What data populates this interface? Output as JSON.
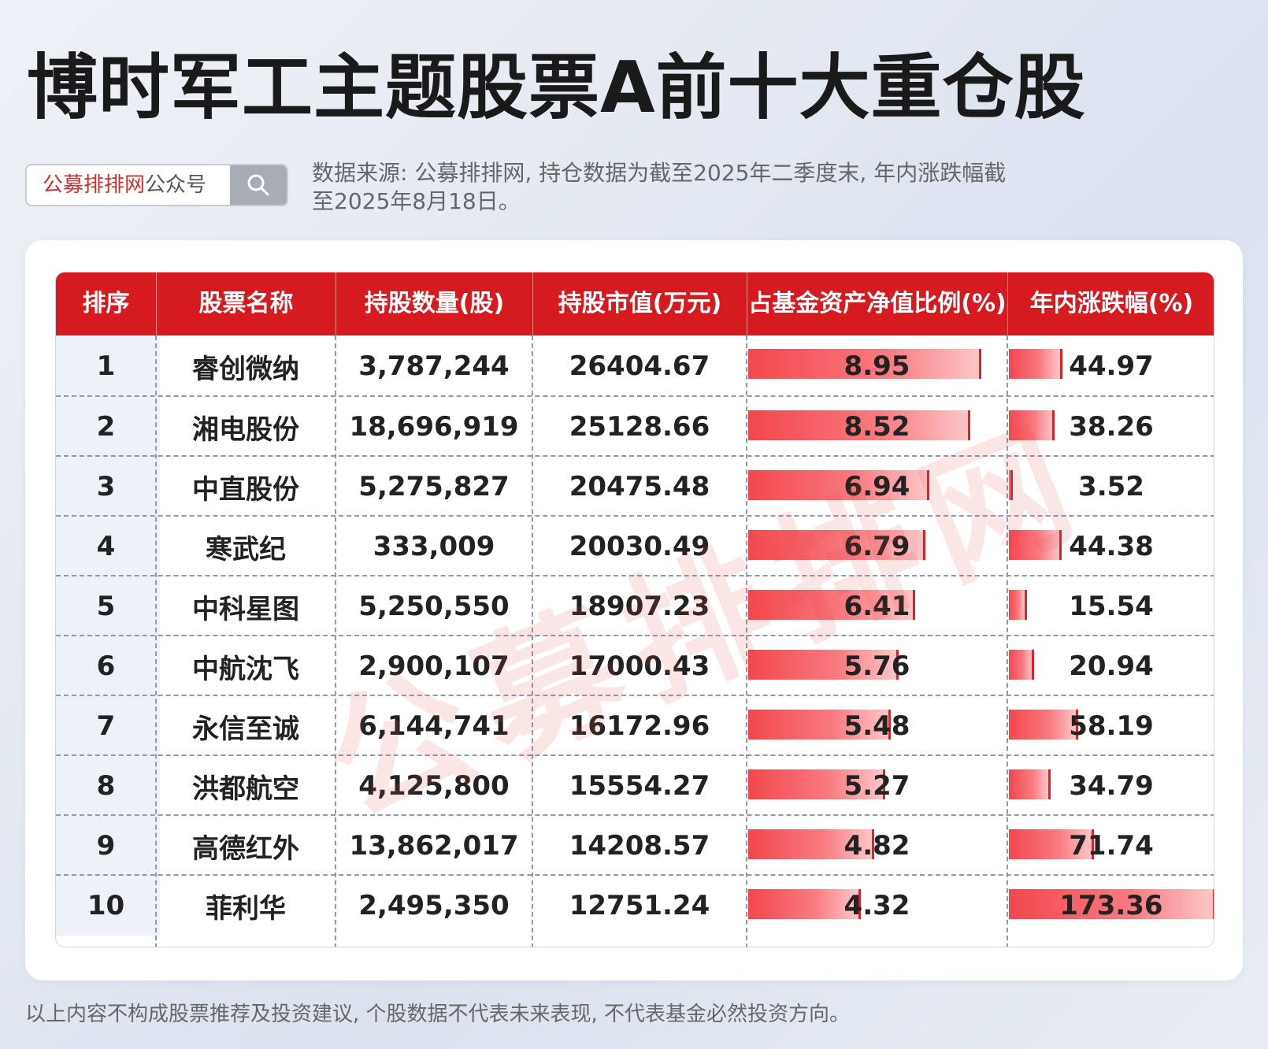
{
  "title": "博时军工主题股票A前十大重仓股",
  "search": {
    "brand": "公募排排网",
    "suffix": "公众号"
  },
  "source_note": "数据来源: 公募排排网, 持仓数据为截至2025年二季度末, 年内涨跌幅截至2025年8月18日。",
  "watermark": "公募排排网",
  "disclaimer": "以上内容不构成股票推荐及投资建议, 个股数据不代表未来表现, 不代表基金必然投资方向。",
  "colors": {
    "header": "#d51a20",
    "bar": "#f2474d",
    "brand": "#d72c2c"
  },
  "chart_data": {
    "type": "table",
    "title": "博时军工主题股票A前十大重仓股",
    "columns": [
      "排序",
      "股票名称",
      "持股数量(股)",
      "持股市值(万元)",
      "占基金资产净值比例(%)",
      "年内涨跌幅(%)"
    ],
    "rows": [
      {
        "rank": "1",
        "name": "睿创微纳",
        "shares": "3,787,244",
        "value": "26404.67",
        "nav_pct": 8.95,
        "ytd": 44.97
      },
      {
        "rank": "2",
        "name": "湘电股份",
        "shares": "18,696,919",
        "value": "25128.66",
        "nav_pct": 8.52,
        "ytd": 38.26
      },
      {
        "rank": "3",
        "name": "中直股份",
        "shares": "5,275,827",
        "value": "20475.48",
        "nav_pct": 6.94,
        "ytd": 3.52
      },
      {
        "rank": "4",
        "name": "寒武纪",
        "shares": "333,009",
        "value": "20030.49",
        "nav_pct": 6.79,
        "ytd": 44.38
      },
      {
        "rank": "5",
        "name": "中科星图",
        "shares": "5,250,550",
        "value": "18907.23",
        "nav_pct": 6.41,
        "ytd": 15.54
      },
      {
        "rank": "6",
        "name": "中航沈飞",
        "shares": "2,900,107",
        "value": "17000.43",
        "nav_pct": 5.76,
        "ytd": 20.94
      },
      {
        "rank": "7",
        "name": "永信至诚",
        "shares": "6,144,741",
        "value": "16172.96",
        "nav_pct": 5.48,
        "ytd": 58.19
      },
      {
        "rank": "8",
        "name": "洪都航空",
        "shares": "4,125,800",
        "value": "15554.27",
        "nav_pct": 5.27,
        "ytd": 34.79
      },
      {
        "rank": "9",
        "name": "高德红外",
        "shares": "13,862,017",
        "value": "14208.57",
        "nav_pct": 4.82,
        "ytd": 71.74
      },
      {
        "rank": "10",
        "name": "菲利华",
        "shares": "2,495,350",
        "value": "12751.24",
        "nav_pct": 4.32,
        "ytd": 173.36
      }
    ]
  }
}
